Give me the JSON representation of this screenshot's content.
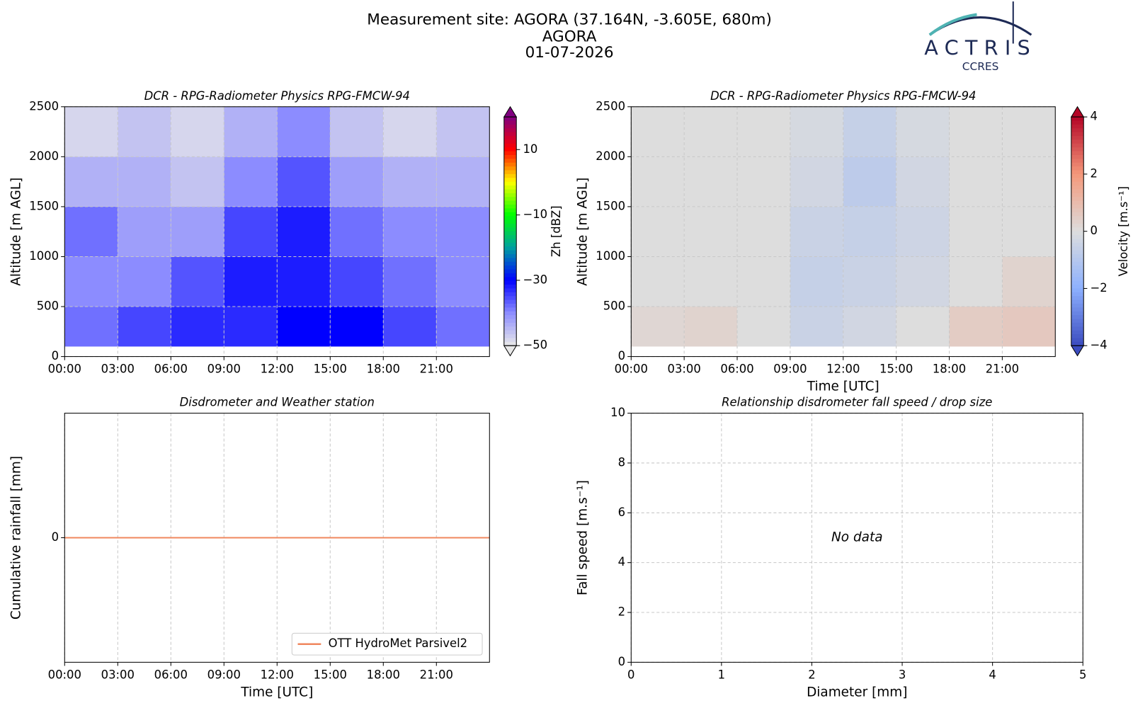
{
  "header": {
    "lines": [
      "Measurement site: AGORA (37.164N, -3.605E, 680m)",
      "AGORA",
      "01-07-2026"
    ]
  },
  "logo": {
    "name": "ACTRIS",
    "sub": "CCRES"
  },
  "chart_data": [
    {
      "type": "heatmap",
      "title": "DCR - RPG-Radiometer Physics RPG-FMCW-94",
      "ylabel": "Altitude [m AGL]",
      "xlim": [
        0,
        24
      ],
      "xticks": [
        {
          "value": 0,
          "label": "00:00"
        },
        {
          "value": 3,
          "label": "03:00"
        },
        {
          "value": 6,
          "label": "06:00"
        },
        {
          "value": 9,
          "label": "09:00"
        },
        {
          "value": 12,
          "label": "12:00"
        },
        {
          "value": 15,
          "label": "15:00"
        },
        {
          "value": 18,
          "label": "18:00"
        },
        {
          "value": 21,
          "label": "21:00"
        }
      ],
      "ylim": [
        0,
        2500
      ],
      "yticks": [
        0,
        500,
        1000,
        1500,
        2000,
        2500
      ],
      "grid": true,
      "x_bins": [
        0,
        3,
        6,
        9,
        12,
        15,
        18,
        21,
        24
      ],
      "y_bins": [
        100,
        500,
        1000,
        1500,
        2000,
        2500
      ],
      "values": [
        [
          -38,
          -35,
          -33,
          -33,
          -30,
          -30,
          -35,
          -38
        ],
        [
          -40,
          -40,
          -36,
          -32,
          -32,
          -35,
          -38,
          -40
        ],
        [
          -38,
          -42,
          -42,
          -35,
          -32,
          -38,
          -40,
          -40
        ],
        [
          -44,
          -44,
          -46,
          -40,
          -36,
          -42,
          -44,
          -44
        ],
        [
          -48,
          -46,
          -48,
          -44,
          -40,
          -46,
          -48,
          -46
        ]
      ],
      "colorbar_label": "Zh [dBZ]",
      "clim": [
        -50,
        20
      ],
      "colorbar_ticks": [
        {
          "value": -50,
          "label": "−50"
        },
        {
          "value": -30,
          "label": "−30"
        },
        {
          "value": -10,
          "label": "−10"
        },
        10
      ],
      "colormap": [
        "#e8e8e8",
        "#8c8cff",
        "#0000ff",
        "#00a0a0",
        "#00ff00",
        "#ffff00",
        "#ff0000",
        "#800080"
      ]
    },
    {
      "type": "heatmap",
      "title": "DCR - RPG-Radiometer Physics RPG-FMCW-94",
      "ylabel": "Altitude [m AGL]",
      "xlabel": "Time [UTC]",
      "xlim": [
        0,
        24
      ],
      "xticks": [
        {
          "value": 0,
          "label": "00:00"
        },
        {
          "value": 3,
          "label": "03:00"
        },
        {
          "value": 6,
          "label": "06:00"
        },
        {
          "value": 9,
          "label": "09:00"
        },
        {
          "value": 12,
          "label": "12:00"
        },
        {
          "value": 15,
          "label": "15:00"
        },
        {
          "value": 18,
          "label": "18:00"
        },
        {
          "value": 21,
          "label": "21:00"
        }
      ],
      "ylim": [
        0,
        2500
      ],
      "yticks": [
        0,
        500,
        1000,
        1500,
        2000,
        2500
      ],
      "grid": true,
      "x_bins": [
        0,
        3,
        6,
        9,
        12,
        15,
        18,
        21,
        24
      ],
      "y_bins": [
        100,
        500,
        1000,
        1500,
        2000,
        2500
      ],
      "values": [
        [
          0.2,
          0.3,
          0,
          -0.5,
          -0.3,
          0,
          0.5,
          0.6
        ],
        [
          0,
          0,
          0,
          -0.6,
          -0.5,
          -0.3,
          0,
          0.3
        ],
        [
          0,
          0,
          0,
          -0.5,
          -0.6,
          -0.4,
          0,
          0
        ],
        [
          0,
          0,
          0,
          -0.3,
          -0.8,
          -0.3,
          0,
          0
        ],
        [
          0,
          0,
          0,
          -0.2,
          -0.6,
          -0.2,
          0,
          0
        ]
      ],
      "colorbar_label": "Velocity [m.s⁻¹]",
      "clim": [
        -4,
        4
      ],
      "colorbar_ticks": [
        {
          "value": -4,
          "label": "−4"
        },
        {
          "value": -2,
          "label": "−2"
        },
        0,
        2,
        4
      ],
      "colormap": [
        "#3b4cc0",
        "#8db0fe",
        "#dddddd",
        "#f4987a",
        "#b40426"
      ]
    },
    {
      "type": "line",
      "title": "Disdrometer and Weather station",
      "ylabel": "Cumulative rainfall [mm]",
      "xlabel": "Time [UTC]",
      "xlim": [
        0,
        24
      ],
      "xticks": [
        {
          "value": 0,
          "label": "00:00"
        },
        {
          "value": 3,
          "label": "03:00"
        },
        {
          "value": 6,
          "label": "06:00"
        },
        {
          "value": 9,
          "label": "09:00"
        },
        {
          "value": 12,
          "label": "12:00"
        },
        {
          "value": 15,
          "label": "15:00"
        },
        {
          "value": 18,
          "label": "18:00"
        },
        {
          "value": 21,
          "label": "21:00"
        }
      ],
      "ylim": [
        -0.055,
        0.055
      ],
      "yticks": [
        0
      ],
      "grid": true,
      "legend": "lower right",
      "x": [
        0,
        24
      ],
      "series": [
        {
          "name": "OTT HydroMet Parsivel2",
          "color": "#f0875e",
          "values": [
            0,
            0
          ]
        }
      ]
    },
    {
      "type": "scatter",
      "title": "Relationship disdrometer fall speed / drop size",
      "ylabel": "Fall speed [m.s⁻¹]",
      "xlabel": "Diameter [mm]",
      "xlim": [
        0,
        5
      ],
      "xticks": [
        0,
        1,
        2,
        3,
        4,
        5
      ],
      "ylim": [
        0,
        10
      ],
      "yticks": [
        0,
        2,
        4,
        6,
        8,
        10
      ],
      "grid": true,
      "annotation": "No data"
    }
  ]
}
